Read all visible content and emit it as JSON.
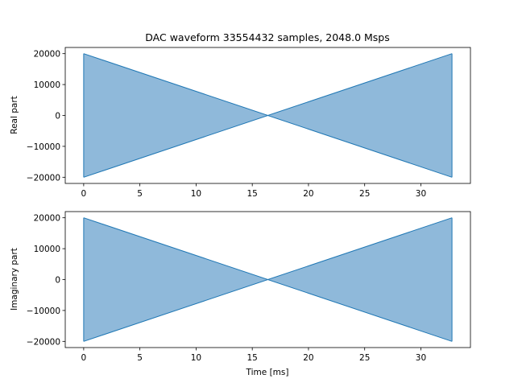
{
  "figure": {
    "title": "DAC waveform 33554432 samples, 2048.0 Msps",
    "xlabel": "Time [ms]"
  },
  "colors": {
    "fill": "#8fb9da",
    "line": "#1f77b4",
    "axis": "#000000"
  },
  "chart_data": [
    {
      "type": "area",
      "ylabel": "Real part",
      "xlim": [
        -1.64,
        34.41
      ],
      "ylim": [
        -22000,
        22000
      ],
      "xticks": [
        0,
        5,
        10,
        15,
        20,
        25,
        30
      ],
      "yticks": [
        -20000,
        -10000,
        0,
        10000,
        20000
      ],
      "ytick_labels": [
        "−20000",
        "−10000",
        "0",
        "10000",
        "20000"
      ],
      "envelope": {
        "upper": {
          "x": [
            0,
            16.384,
            32.768
          ],
          "y": [
            20000,
            0,
            20000
          ]
        },
        "lower": {
          "x": [
            0,
            16.384,
            32.768
          ],
          "y": [
            -20000,
            0,
            -20000
          ]
        }
      }
    },
    {
      "type": "area",
      "ylabel": "Imaginary part",
      "xlim": [
        -1.64,
        34.41
      ],
      "ylim": [
        -22000,
        22000
      ],
      "xticks": [
        0,
        5,
        10,
        15,
        20,
        25,
        30
      ],
      "yticks": [
        -20000,
        -10000,
        0,
        10000,
        20000
      ],
      "ytick_labels": [
        "−20000",
        "−10000",
        "0",
        "10000",
        "20000"
      ],
      "envelope": {
        "upper": {
          "x": [
            0,
            16.384,
            32.768
          ],
          "y": [
            20000,
            0,
            20000
          ]
        },
        "lower": {
          "x": [
            0,
            16.384,
            32.768
          ],
          "y": [
            -20000,
            0,
            -20000
          ]
        }
      }
    }
  ]
}
